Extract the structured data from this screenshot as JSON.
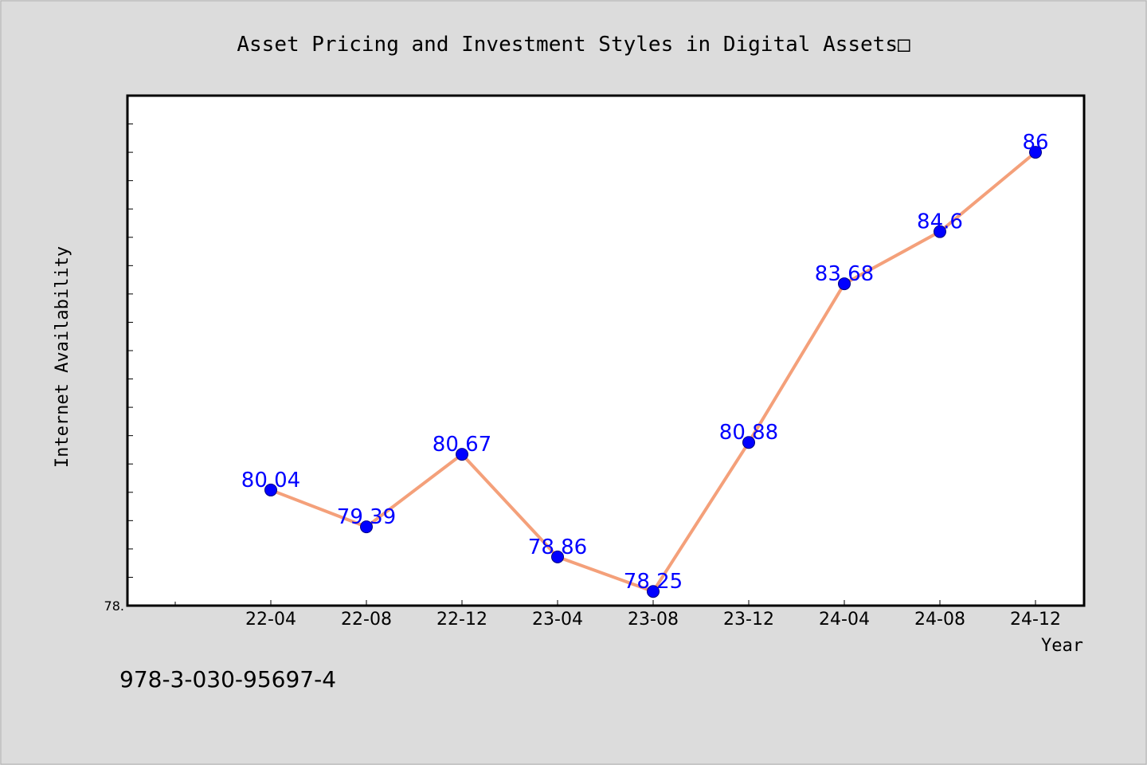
{
  "footer_text": "978-3-030-95697-4",
  "colors": {
    "background": "#dcdcdc",
    "plot_background": "#ffffff",
    "line": "#f4a07a",
    "marker": "#0000ff",
    "label": "#0000ff",
    "axis": "#000000"
  },
  "chart_data": {
    "type": "line",
    "title": "Asset Pricing and Investment Styles in Digital Assets□",
    "xlabel": "Year",
    "ylabel": "Internet Availability",
    "categories": [
      "22-04",
      "22-08",
      "22-12",
      "23-04",
      "23-08",
      "23-12",
      "24-04",
      "24-08",
      "24-12"
    ],
    "values": [
      80.04,
      79.39,
      80.67,
      78.86,
      78.25,
      80.88,
      83.68,
      84.6,
      86
    ],
    "data_labels": [
      "80.04",
      "79.39",
      "80.67",
      "78.86",
      "78.25",
      "80.88",
      "83.68",
      "84.6",
      "86"
    ],
    "ylim": [
      78.0,
      87.0
    ],
    "y_tick_labels": [
      "78."
    ],
    "grid": false,
    "legend": "none"
  }
}
